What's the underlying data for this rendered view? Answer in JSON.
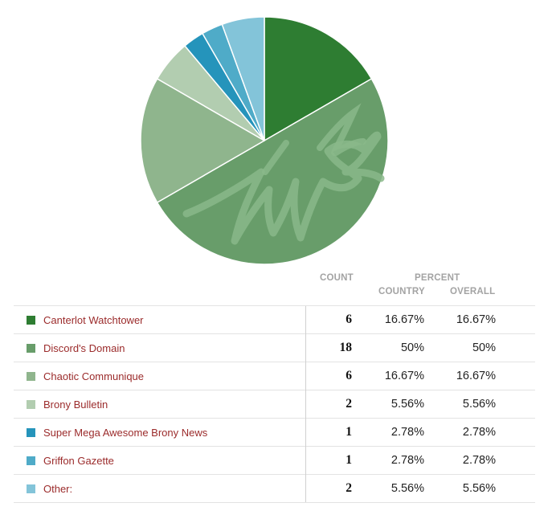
{
  "chart_data": {
    "type": "pie",
    "slices": [
      {
        "label": "Canterlot Watchtower",
        "count": 6,
        "percent_country": "16.67%",
        "percent_overall": "16.67%",
        "color": "#2e7d32"
      },
      {
        "label": "Discord's Domain",
        "count": 18,
        "percent_country": "50%",
        "percent_overall": "50%",
        "color": "#689d6a"
      },
      {
        "label": "Chaotic Communique",
        "count": 6,
        "percent_country": "16.67%",
        "percent_overall": "16.67%",
        "color": "#8fb58d"
      },
      {
        "label": "Brony Bulletin",
        "count": 2,
        "percent_country": "5.56%",
        "percent_overall": "5.56%",
        "color": "#b2cdb0"
      },
      {
        "label": "Super Mega Awesome Brony News",
        "count": 1,
        "percent_country": "2.78%",
        "percent_overall": "2.78%",
        "color": "#2594bb"
      },
      {
        "label": "Griffon Gazette",
        "count": 1,
        "percent_country": "2.78%",
        "percent_overall": "2.78%",
        "color": "#4fabc8"
      },
      {
        "label": "Other:",
        "count": 2,
        "percent_country": "5.56%",
        "percent_overall": "5.56%",
        "color": "#83c4d9"
      }
    ]
  },
  "table": {
    "headers": {
      "count": "COUNT",
      "percent": "PERCENT",
      "country": "COUNTRY",
      "overall": "OVERALL"
    }
  },
  "watermark_icon": "discord-squiggle-watermark"
}
